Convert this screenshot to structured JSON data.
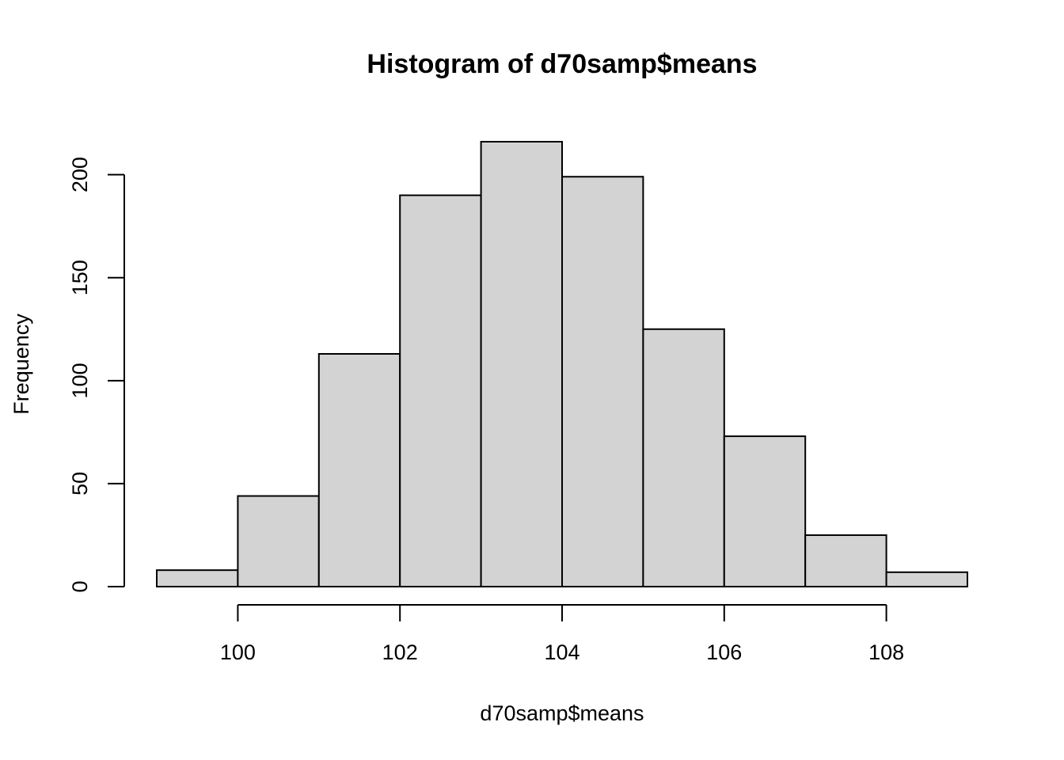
{
  "chart_data": {
    "type": "bar",
    "title": "Histogram of d70samp$means",
    "xlabel": "d70samp$means",
    "ylabel": "Frequency",
    "bins": [
      {
        "start": 99,
        "end": 100,
        "count": 8
      },
      {
        "start": 100,
        "end": 101,
        "count": 44
      },
      {
        "start": 101,
        "end": 102,
        "count": 113
      },
      {
        "start": 102,
        "end": 103,
        "count": 190
      },
      {
        "start": 103,
        "end": 104,
        "count": 216
      },
      {
        "start": 104,
        "end": 105,
        "count": 199
      },
      {
        "start": 105,
        "end": 106,
        "count": 125
      },
      {
        "start": 106,
        "end": 107,
        "count": 73
      },
      {
        "start": 107,
        "end": 108,
        "count": 25
      },
      {
        "start": 108,
        "end": 109,
        "count": 7
      }
    ],
    "xlim": [
      99,
      109
    ],
    "ylim": [
      0,
      216
    ],
    "x_ticks": [
      100,
      102,
      104,
      106,
      108
    ],
    "x_tick_labels": [
      "100",
      "102",
      "104",
      "106",
      "108"
    ],
    "y_ticks": [
      0,
      50,
      100,
      150,
      200
    ],
    "y_tick_labels": [
      "0",
      "50",
      "100",
      "150",
      "200"
    ],
    "grid": false,
    "colors": {
      "bar_fill": "#d3d3d3",
      "bar_stroke": "#000000"
    }
  }
}
